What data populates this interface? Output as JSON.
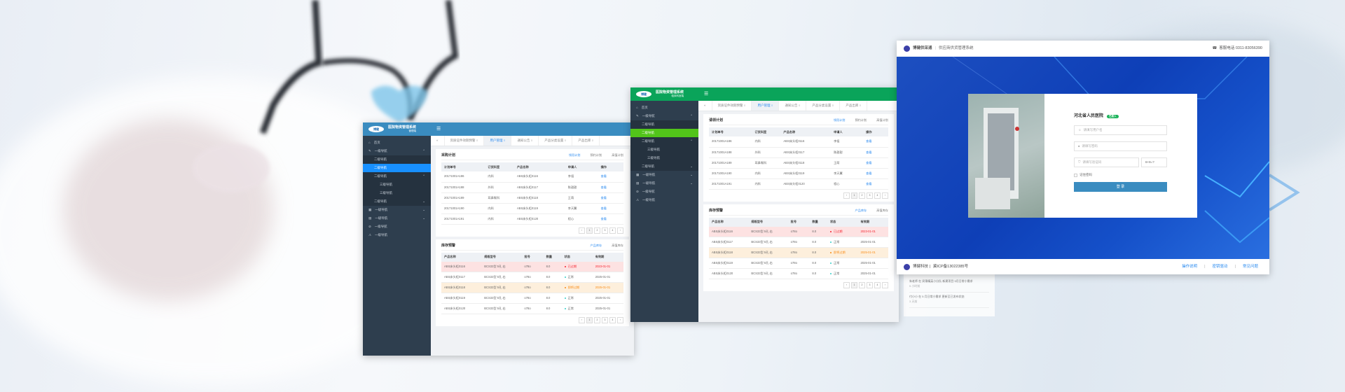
{
  "panels": [
    {
      "id": "admin-blue",
      "theme": "#3a8cc0",
      "active": "#1890ff",
      "system_name": "医院物资管理系统",
      "system_sub": "管理端",
      "logo_text": "博健",
      "sidebar": [
        {
          "label": "首页",
          "level": 1,
          "icon": "home-icon"
        },
        {
          "label": "一级导航",
          "level": 1,
          "icon": "edit-icon",
          "chev": "up"
        },
        {
          "label": "二级导航",
          "level": 2
        },
        {
          "label": "二级导航",
          "level": 2,
          "active": true
        },
        {
          "label": "二级导航",
          "level": 2,
          "chev": "up"
        },
        {
          "label": "三级导航",
          "level": 3
        },
        {
          "label": "三级导航",
          "level": 3
        },
        {
          "label": "二级导航",
          "level": 2,
          "chev": "down"
        },
        {
          "label": "一级导航",
          "level": 1,
          "icon": "grid-icon",
          "chev": "down"
        },
        {
          "label": "一级导航",
          "level": 1,
          "icon": "table-icon",
          "chev": "down"
        },
        {
          "label": "一级导航",
          "level": 1,
          "icon": "check-circle-icon"
        },
        {
          "label": "一级导航",
          "level": 1,
          "icon": "warning-icon"
        }
      ],
      "tabs": [
        "资质证件效期预警",
        "用户管理",
        "通知公告",
        "产品分类设置",
        "产品出库"
      ],
      "active_tab": 1,
      "plan": {
        "title": "采购计划",
        "subtabs": [
          "领用计划",
          "预约计划",
          "高值计划"
        ]
      },
      "stock": {
        "title": "库存预警",
        "subtabs": [
          "产品库存",
          "高值库存"
        ]
      }
    },
    {
      "id": "admin-green",
      "theme": "#0aa45a",
      "active": "#52c41a",
      "system_name": "医院物资管理系统",
      "system_sub": "临床科室端",
      "logo_text": "博健",
      "sidebar": [
        {
          "label": "首页",
          "level": 1,
          "icon": "home-icon"
        },
        {
          "label": "一级导航",
          "level": 1,
          "icon": "edit-icon",
          "chev": "up"
        },
        {
          "label": "二级导航",
          "level": 2
        },
        {
          "label": "二级导航",
          "level": 2,
          "active": true
        },
        {
          "label": "二级导航",
          "level": 2,
          "chev": "up"
        },
        {
          "label": "三级导航",
          "level": 3
        },
        {
          "label": "三级导航",
          "level": 3
        },
        {
          "label": "二级导航",
          "level": 2,
          "chev": "down"
        },
        {
          "label": "一级导航",
          "level": 1,
          "icon": "grid-icon",
          "chev": "down"
        },
        {
          "label": "一级导航",
          "level": 1,
          "icon": "table-icon",
          "chev": "down"
        },
        {
          "label": "一级导航",
          "level": 1,
          "icon": "check-circle-icon"
        },
        {
          "label": "一级导航",
          "level": 1,
          "icon": "warning-icon"
        }
      ],
      "tabs": [
        "资质证件效期预警",
        "用户管理",
        "通知公告",
        "产品分类设置",
        "产品出库"
      ],
      "active_tab": 1,
      "plan": {
        "title": "请领计划",
        "subtabs": [
          "领用计划",
          "预约计划",
          "高值计划"
        ]
      },
      "stock": {
        "title": "库存预警",
        "subtabs": [
          "产品库存",
          "高值库存"
        ]
      }
    }
  ],
  "plan_table": {
    "columns": [
      "计划单号",
      "订货科室",
      "产品名称",
      "申请人",
      "操作"
    ],
    "rows": [
      [
        "20171001A186",
        "内科",
        "ABS床头柜0116",
        "李祖",
        "查看"
      ],
      [
        "20171001A188",
        "外科",
        "ABS床头柜0117",
        "陈甜甜",
        "查看"
      ],
      [
        "20171001A189",
        "耳鼻喉科",
        "ABS床头柜0118",
        "王萌",
        "查看"
      ],
      [
        "20171001A190",
        "内科",
        "ABS床头柜0119",
        "李天翼",
        "查看"
      ],
      [
        "20171001A191",
        "内科",
        "ABS床头柜0120",
        "程心",
        "查看"
      ]
    ]
  },
  "stock_table": {
    "columns": [
      "产品名称",
      "规格型号",
      "批号",
      "数量",
      "状态",
      "有效期"
    ],
    "rows": [
      {
        "cells": [
          "ABS床头柜0116",
          "BCS33型 5孔 右",
          "o78o",
          "8.0",
          "已过期",
          "2023-01-01"
        ],
        "status": "expired"
      },
      {
        "cells": [
          "ABS床头柜0117",
          "BCS33型 5孔 右",
          "o78o",
          "8.0",
          "正常",
          "2025-01-01"
        ],
        "status": "normal"
      },
      {
        "cells": [
          "ABS床头柜0118",
          "BCS33型 5孔 右",
          "o78o",
          "8.0",
          "即将过期",
          "2025-01-01"
        ],
        "status": "expiring"
      },
      {
        "cells": [
          "ABS床头柜0119",
          "BCS33型 5孔 右",
          "o78o",
          "8.0",
          "正常",
          "2025-01-01"
        ],
        "status": "normal"
      },
      {
        "cells": [
          "ABS床头柜0120",
          "BCS33型 5孔 右",
          "o78o",
          "8.0",
          "正常",
          "2025-01-01"
        ],
        "status": "normal"
      }
    ]
  },
  "pagination": [
    "‹",
    "1",
    "2",
    "3",
    "4",
    "›"
  ],
  "status_colors": {
    "expired": "#f5222d",
    "normal": "#36cfc9",
    "expiring": "#fa8c16"
  },
  "login": {
    "brand": "博健供采通",
    "system": "供应商供货管理系统",
    "hotline": "客服电话 0311-83056390",
    "hospital": "河北省人民医院",
    "hospital_badge": "已接入",
    "username_placeholder": "请填写用户名",
    "password_placeholder": "请填写密码",
    "captcha_placeholder": "请填写验证码",
    "captcha_question": "6+8=?",
    "remember": "记住密码",
    "login_button": "登 录",
    "footer_company": "博健科技 |",
    "footer_icp": "冀ICP备13022385号",
    "footer_links": [
      "操作说明",
      "密钥驱动",
      "常见问题"
    ],
    "accent": "#0e3fb7"
  },
  "feed": [
    {
      "text": "朱老师 在 凤锦精英小分队 新建项目 5月日常小需求",
      "time": "5 小时前"
    },
    {
      "text": "付小小 在 5 月日常小需求 更新至已发布状态",
      "time": "3 天前"
    }
  ]
}
